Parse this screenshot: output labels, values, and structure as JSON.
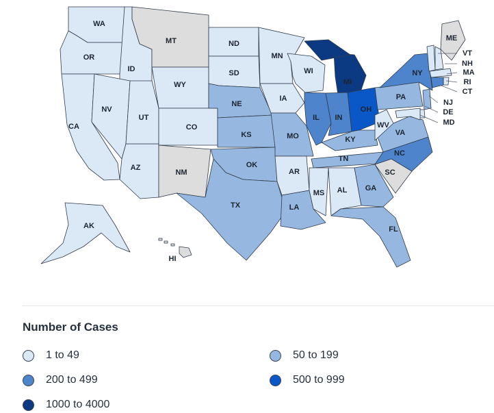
{
  "legend": {
    "title": "Number of Cases",
    "items": [
      {
        "label": "1 to 49",
        "color": "#dbe8f6"
      },
      {
        "label": "50 to 199",
        "color": "#96b8e0"
      },
      {
        "label": "200 to 499",
        "color": "#4d84cc"
      },
      {
        "label": "500 to 999",
        "color": "#0a58c8"
      },
      {
        "label": "1000 to 4000",
        "color": "#0b3a82"
      }
    ]
  },
  "no_data_color": "#dddddd",
  "states": [
    {
      "abbr": "WA",
      "bin": 0
    },
    {
      "abbr": "OR",
      "bin": 0
    },
    {
      "abbr": "CA",
      "bin": 0
    },
    {
      "abbr": "ID",
      "bin": 0
    },
    {
      "abbr": "NV",
      "bin": 0
    },
    {
      "abbr": "AZ",
      "bin": 0
    },
    {
      "abbr": "UT",
      "bin": 0
    },
    {
      "abbr": "MT",
      "bin": null
    },
    {
      "abbr": "WY",
      "bin": 0
    },
    {
      "abbr": "CO",
      "bin": 0
    },
    {
      "abbr": "NM",
      "bin": null
    },
    {
      "abbr": "ND",
      "bin": 0
    },
    {
      "abbr": "SD",
      "bin": 0
    },
    {
      "abbr": "NE",
      "bin": 1
    },
    {
      "abbr": "KS",
      "bin": 1
    },
    {
      "abbr": "OK",
      "bin": 1
    },
    {
      "abbr": "TX",
      "bin": 1
    },
    {
      "abbr": "MN",
      "bin": 0
    },
    {
      "abbr": "IA",
      "bin": 0
    },
    {
      "abbr": "MO",
      "bin": 1
    },
    {
      "abbr": "AR",
      "bin": 0
    },
    {
      "abbr": "LA",
      "bin": 1
    },
    {
      "abbr": "WI",
      "bin": 0
    },
    {
      "abbr": "IL",
      "bin": 2
    },
    {
      "abbr": "MI",
      "bin": 4
    },
    {
      "abbr": "IN",
      "bin": 2
    },
    {
      "abbr": "OH",
      "bin": 3
    },
    {
      "abbr": "KY",
      "bin": 1
    },
    {
      "abbr": "TN",
      "bin": 1
    },
    {
      "abbr": "MS",
      "bin": 0
    },
    {
      "abbr": "AL",
      "bin": 0
    },
    {
      "abbr": "GA",
      "bin": 1
    },
    {
      "abbr": "FL",
      "bin": 1
    },
    {
      "abbr": "SC",
      "bin": null
    },
    {
      "abbr": "NC",
      "bin": 2
    },
    {
      "abbr": "VA",
      "bin": 1
    },
    {
      "abbr": "WV",
      "bin": 0
    },
    {
      "abbr": "PA",
      "bin": 1
    },
    {
      "abbr": "NY",
      "bin": 2
    },
    {
      "abbr": "ME",
      "bin": null
    },
    {
      "abbr": "VT",
      "bin": 0
    },
    {
      "abbr": "NH",
      "bin": 0
    },
    {
      "abbr": "MA",
      "bin": 0
    },
    {
      "abbr": "RI",
      "bin": 0
    },
    {
      "abbr": "CT",
      "bin": 2
    },
    {
      "abbr": "NJ",
      "bin": 1
    },
    {
      "abbr": "DE",
      "bin": 0
    },
    {
      "abbr": "MD",
      "bin": 0
    },
    {
      "abbr": "AK",
      "bin": 0
    },
    {
      "abbr": "HI",
      "bin": null
    }
  ]
}
